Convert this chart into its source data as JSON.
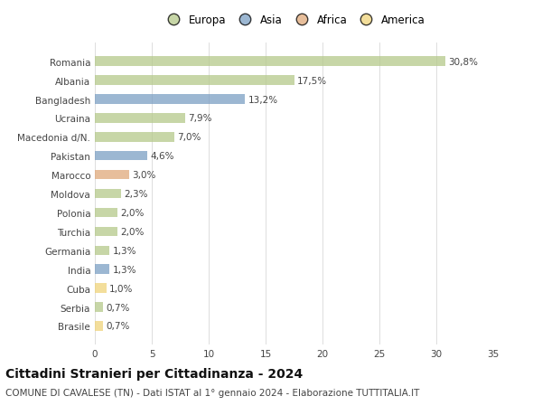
{
  "countries": [
    "Romania",
    "Albania",
    "Bangladesh",
    "Ucraina",
    "Macedonia d/N.",
    "Pakistan",
    "Marocco",
    "Moldova",
    "Polonia",
    "Turchia",
    "Germania",
    "India",
    "Cuba",
    "Serbia",
    "Brasile"
  ],
  "values": [
    30.8,
    17.5,
    13.2,
    7.9,
    7.0,
    4.6,
    3.0,
    2.3,
    2.0,
    2.0,
    1.3,
    1.3,
    1.0,
    0.7,
    0.7
  ],
  "labels": [
    "30,8%",
    "17,5%",
    "13,2%",
    "7,9%",
    "7,0%",
    "4,6%",
    "3,0%",
    "2,3%",
    "2,0%",
    "2,0%",
    "1,3%",
    "1,3%",
    "1,0%",
    "0,7%",
    "0,7%"
  ],
  "regions": [
    "Europa",
    "Europa",
    "Asia",
    "Europa",
    "Europa",
    "Asia",
    "Africa",
    "Europa",
    "Europa",
    "Europa",
    "Europa",
    "Asia",
    "America",
    "Europa",
    "America"
  ],
  "colors": {
    "Europa": "#b5c98a",
    "Asia": "#7b9fc4",
    "Africa": "#e0a87a",
    "America": "#f0d47a"
  },
  "legend_order": [
    "Europa",
    "Asia",
    "Africa",
    "America"
  ],
  "title": "Cittadini Stranieri per Cittadinanza - 2024",
  "subtitle": "COMUNE DI CAVALESE (TN) - Dati ISTAT al 1° gennaio 2024 - Elaborazione TUTTITALIA.IT",
  "xlim": [
    0,
    35
  ],
  "xticks": [
    0,
    5,
    10,
    15,
    20,
    25,
    30,
    35
  ],
  "background_color": "#ffffff",
  "grid_color": "#d8d8d8",
  "bar_alpha": 0.75,
  "title_fontsize": 10,
  "subtitle_fontsize": 7.5,
  "label_fontsize": 7.5,
  "tick_fontsize": 7.5,
  "legend_fontsize": 8.5
}
